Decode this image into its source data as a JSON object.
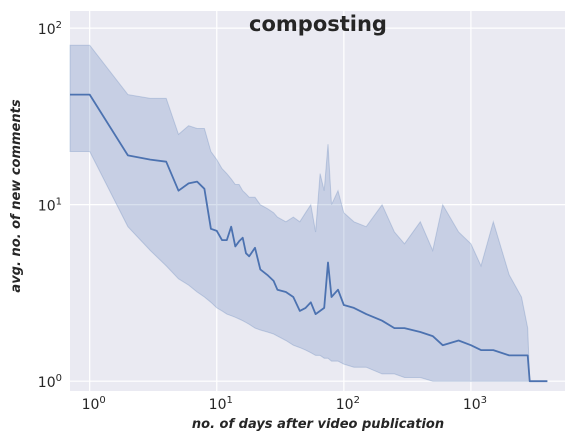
{
  "chart_data": {
    "type": "line",
    "title": "composting",
    "xlabel": "no. of days after video publication",
    "ylabel": "avg. no. of new comments",
    "x_scale": "log",
    "y_scale": "log",
    "xlim": [
      0.7,
      5500
    ],
    "ylim": [
      0.88,
      125
    ],
    "x_ticks": [
      {
        "value": 1,
        "base": "10",
        "exp": "0"
      },
      {
        "value": 10,
        "base": "10",
        "exp": "1"
      },
      {
        "value": 100,
        "base": "10",
        "exp": "2"
      },
      {
        "value": 1000,
        "base": "10",
        "exp": "3"
      }
    ],
    "y_ticks": [
      {
        "value": 1,
        "base": "10",
        "exp": "0"
      },
      {
        "value": 10,
        "base": "10",
        "exp": "1"
      },
      {
        "value": 100,
        "base": "10",
        "exp": "2"
      }
    ],
    "grid": true,
    "style": {
      "background": "#eaeaf2",
      "grid_color": "#ffffff",
      "line_color": "#4c72b0",
      "band_color": "#4c72b0"
    },
    "series": [
      {
        "x": [
          0.7,
          1,
          2,
          3,
          4,
          5,
          6,
          7,
          8,
          9,
          10,
          11,
          12,
          13,
          14,
          15,
          16,
          17,
          18,
          20,
          22,
          25,
          28,
          30,
          35,
          40,
          45,
          50,
          55,
          60,
          65,
          70,
          75,
          80,
          90,
          100,
          120,
          150,
          200,
          250,
          300,
          400,
          500,
          600,
          800,
          1000,
          1200,
          1500,
          2000,
          2500,
          2800,
          2900,
          3000,
          4000
        ],
        "y": [
          42,
          42,
          19,
          18,
          17.5,
          12,
          13.2,
          13.5,
          12.3,
          7.3,
          7.1,
          6.3,
          6.3,
          7.5,
          5.8,
          6.2,
          6.5,
          5.3,
          5.1,
          5.7,
          4.3,
          4.0,
          3.7,
          3.3,
          3.2,
          3.0,
          2.5,
          2.6,
          2.8,
          2.4,
          2.5,
          2.6,
          4.7,
          3.0,
          3.3,
          2.7,
          2.6,
          2.4,
          2.2,
          2.0,
          2.0,
          1.9,
          1.8,
          1.6,
          1.7,
          1.6,
          1.5,
          1.5,
          1.4,
          1.4,
          1.4,
          1.0,
          1.0,
          1.0
        ],
        "ci_low": [
          20,
          20,
          7.5,
          5.5,
          4.5,
          3.8,
          3.5,
          3.2,
          3.0,
          2.8,
          2.6,
          2.5,
          2.4,
          2.35,
          2.3,
          2.25,
          2.2,
          2.15,
          2.1,
          2.0,
          1.95,
          1.9,
          1.85,
          1.8,
          1.7,
          1.6,
          1.55,
          1.5,
          1.45,
          1.4,
          1.4,
          1.35,
          1.35,
          1.3,
          1.3,
          1.25,
          1.2,
          1.2,
          1.1,
          1.1,
          1.05,
          1.05,
          1.0,
          1.0,
          1.0,
          1.0,
          1.0,
          1.0,
          1.0,
          1.0,
          1.0,
          1.0,
          1.0,
          1.0
        ],
        "ci_high": [
          80,
          80,
          42,
          40,
          40,
          25,
          28,
          27,
          27,
          20,
          18,
          16,
          15,
          14,
          13,
          13,
          12,
          11.5,
          11,
          11,
          10,
          9.5,
          9,
          8.5,
          8,
          8.5,
          8,
          9,
          10,
          7,
          15,
          12,
          22,
          10,
          12,
          9,
          8,
          7.5,
          10,
          7,
          6,
          8,
          5.5,
          10,
          7,
          6,
          4.5,
          8,
          4,
          3,
          2,
          1,
          1,
          1
        ]
      }
    ]
  }
}
